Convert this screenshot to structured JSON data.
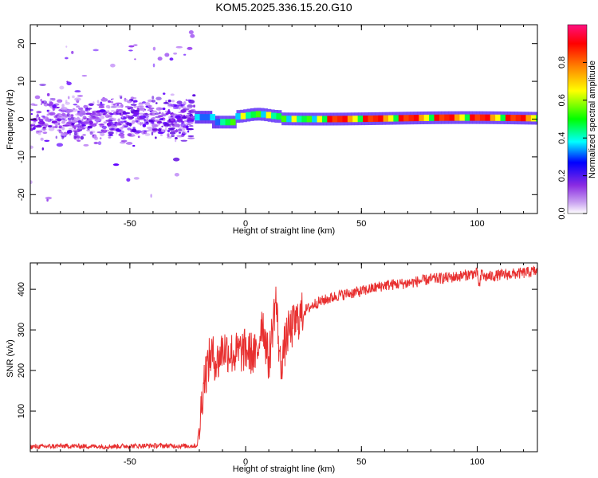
{
  "title": "KOM5.2025.336.15.20.G10",
  "chart_data": [
    {
      "type": "heatmap",
      "name": "spectrogram",
      "xlabel": "Height of straight line (km)",
      "ylabel": "Frequency (Hz)",
      "xlim": [
        -93,
        126
      ],
      "ylim": [
        -25,
        25
      ],
      "xticks": [
        -50,
        0,
        50,
        100
      ],
      "yticks": [
        -20,
        -10,
        0,
        10,
        20
      ],
      "colorbar": {
        "label": "Normalized spectral amplitude",
        "range": [
          0,
          1
        ],
        "ticks": [
          "0.0",
          "0.2",
          "0.4",
          "0.6",
          "0.8"
        ],
        "colormap": [
          "#ffffff",
          "#8a2be2",
          "#0000ff",
          "#00ffff",
          "#00ff00",
          "#ffff00",
          "#ff8000",
          "#ff0000",
          "#ff1080"
        ]
      },
      "regions": [
        {
          "x_range": [
            -93,
            -22
          ],
          "freq_spread_hz": [
            -10,
            10
          ],
          "amplitude": [
            0.05,
            0.2
          ],
          "description_color": "#8a2be2"
        },
        {
          "x_range": [
            -22,
            126
          ],
          "freq_center_hz": [
            0,
            1
          ],
          "amplitude": [
            0.3,
            1.0
          ]
        }
      ]
    },
    {
      "type": "line",
      "name": "snr",
      "xlabel": "Height of straight line (km)",
      "ylabel": "SNR (v/v)",
      "xlim": [
        -93,
        126
      ],
      "ylim": [
        0,
        465
      ],
      "xticks": [
        -50,
        0,
        50,
        100
      ],
      "yticks": [
        100,
        200,
        300,
        400
      ],
      "color": "#e83030",
      "x": [
        -93,
        -80,
        -60,
        -40,
        -25,
        -21,
        -20,
        -18,
        -15,
        -12,
        -10,
        -5,
        0,
        5,
        7,
        10,
        13,
        15,
        18,
        20,
        25,
        30,
        35,
        40,
        50,
        60,
        70,
        80,
        90,
        100,
        101,
        102,
        103,
        110,
        120,
        126
      ],
      "values": [
        12,
        14,
        13,
        15,
        14,
        15,
        60,
        180,
        240,
        220,
        255,
        240,
        250,
        235,
        330,
        220,
        380,
        210,
        290,
        305,
        345,
        365,
        375,
        385,
        395,
        410,
        415,
        425,
        430,
        440,
        405,
        445,
        430,
        435,
        440,
        445
      ]
    }
  ]
}
